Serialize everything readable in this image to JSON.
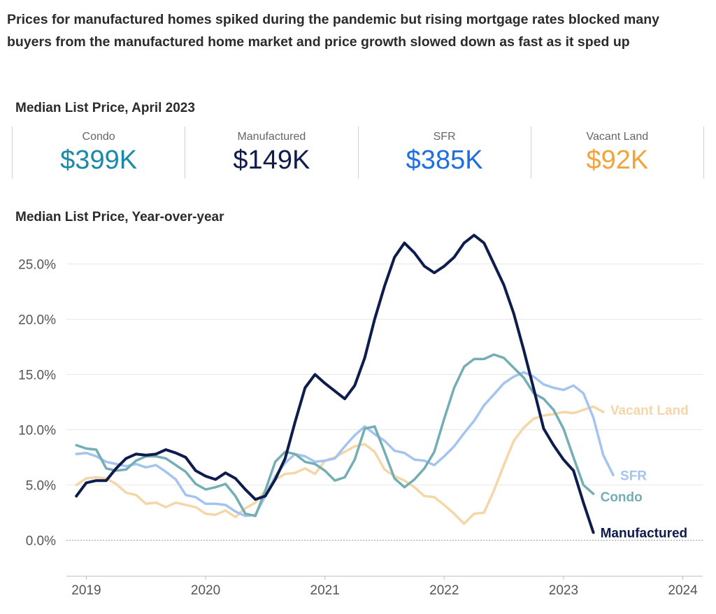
{
  "headline": "Prices for manufactured homes spiked during the pandemic but rising mortgage rates blocked many buyers from the manufactured home market and price growth slowed down as fast as it sped up",
  "kpi_title": "Median List Price, April 2023",
  "kpis": [
    {
      "label": "Condo",
      "value": "$399K",
      "color": "#1a8aa8"
    },
    {
      "label": "Manufactured",
      "value": "$149K",
      "color": "#0f1c4d"
    },
    {
      "label": "SFR",
      "value": "$385K",
      "color": "#1f6fe0"
    },
    {
      "label": "Vacant Land",
      "value": "$92K",
      "color": "#f2a43c"
    }
  ],
  "chart_title": "Median List Price, Year-over-year",
  "chart_data": {
    "type": "line",
    "x_start": "2018-12",
    "x_step": "month",
    "xlim": [
      "2018-11",
      "2024-03"
    ],
    "x_ticks": [
      "2019",
      "2020",
      "2021",
      "2022",
      "2023",
      "2024"
    ],
    "ylim": [
      -3,
      28
    ],
    "y_ticks": [
      0,
      5,
      10,
      15,
      20,
      25
    ],
    "y_tick_labels": [
      "0.0%",
      "5.0%",
      "10.0%",
      "15.0%",
      "20.0%",
      "25.0%"
    ],
    "grid": true,
    "legend": "direct labels at line ends",
    "series": [
      {
        "name": "Vacant Land",
        "color": "#f5d6a8",
        "values": [
          5.0,
          5.6,
          5.7,
          5.6,
          5.1,
          4.3,
          4.1,
          3.3,
          3.4,
          3.0,
          3.4,
          3.2,
          3.0,
          2.4,
          2.3,
          2.7,
          2.1,
          2.9,
          3.4,
          4.5,
          5.5,
          6.0,
          6.1,
          6.5,
          6.0,
          7.2,
          7.5,
          8.0,
          8.5,
          8.7,
          8.0,
          6.4,
          5.8,
          5.4,
          4.8,
          4.0,
          3.9,
          3.2,
          2.4,
          1.5,
          2.4,
          2.5,
          4.5,
          6.8,
          9.0,
          10.2,
          11.0,
          11.3,
          11.4,
          11.6,
          11.5,
          11.8,
          12.1,
          11.6
        ]
      },
      {
        "name": "SFR",
        "color": "#a4c4f0",
        "values": [
          7.8,
          7.9,
          7.6,
          7.1,
          6.9,
          6.7,
          6.9,
          6.6,
          6.8,
          6.2,
          5.5,
          4.1,
          3.9,
          3.3,
          3.3,
          3.2,
          2.6,
          2.2,
          2.3,
          4.0,
          5.8,
          7.0,
          7.8,
          7.6,
          7.1,
          7.2,
          7.4,
          8.5,
          9.5,
          10.3,
          9.6,
          9.0,
          8.1,
          7.9,
          7.3,
          7.2,
          6.8,
          7.6,
          8.5,
          9.7,
          10.8,
          12.2,
          13.2,
          14.2,
          14.8,
          15.2,
          14.8,
          14.1,
          13.8,
          13.6,
          14.0,
          13.3,
          11.1,
          7.7,
          5.9
        ]
      },
      {
        "name": "Condo",
        "color": "#74aeb5",
        "values": [
          8.6,
          8.3,
          8.2,
          6.5,
          6.3,
          6.4,
          7.2,
          7.6,
          7.6,
          7.4,
          6.8,
          6.2,
          5.1,
          4.6,
          4.8,
          5.1,
          4.0,
          2.4,
          2.2,
          4.5,
          7.1,
          8.0,
          7.8,
          7.1,
          6.9,
          6.3,
          5.4,
          5.7,
          7.3,
          10.1,
          10.3,
          8.0,
          5.6,
          4.8,
          5.5,
          6.5,
          8.0,
          11.0,
          13.8,
          15.7,
          16.4,
          16.4,
          16.8,
          16.5,
          15.6,
          14.7,
          13.3,
          12.8,
          11.8,
          10.1,
          7.5,
          5.0,
          4.2
        ]
      },
      {
        "name": "Manufactured",
        "color": "#0e1b4d",
        "values": [
          4.0,
          5.2,
          5.4,
          5.4,
          6.5,
          7.4,
          7.8,
          7.7,
          7.8,
          8.2,
          7.9,
          7.5,
          6.3,
          5.8,
          5.5,
          6.1,
          5.6,
          4.6,
          3.7,
          4.0,
          5.5,
          7.4,
          10.7,
          13.8,
          15.0,
          14.2,
          13.5,
          12.8,
          14.0,
          16.5,
          20.0,
          23.0,
          25.6,
          26.9,
          26.0,
          24.8,
          24.2,
          24.8,
          25.6,
          26.9,
          27.6,
          26.9,
          25.0,
          23.1,
          20.5,
          17.2,
          13.7,
          10.1,
          8.6,
          7.3,
          6.3,
          3.4,
          0.7
        ]
      }
    ]
  }
}
